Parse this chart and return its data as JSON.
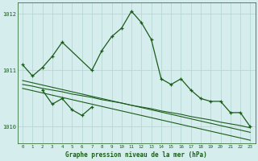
{
  "title": "Graphe pression niveau de la mer (hPa)",
  "background_color": "#d5eeed",
  "grid_color": "#b8d8d5",
  "line_color": "#1a5c1a",
  "ylim": [
    1009.7,
    1012.2
  ],
  "yticks": [
    1010,
    1011,
    1012
  ],
  "xlim": [
    -0.5,
    23.5
  ],
  "x_ticks": [
    0,
    1,
    2,
    3,
    4,
    5,
    6,
    7,
    8,
    9,
    10,
    11,
    12,
    13,
    14,
    15,
    16,
    17,
    18,
    19,
    20,
    21,
    22,
    23
  ],
  "series_upper": {
    "x": [
      0,
      1,
      2,
      3,
      4,
      7,
      8,
      9,
      10,
      11,
      12,
      13,
      14,
      15,
      16,
      17,
      18,
      19,
      20,
      21,
      22,
      23
    ],
    "y": [
      1011.1,
      1010.9,
      1011.05,
      1011.25,
      1011.5,
      1011.0,
      1011.35,
      1011.6,
      1011.75,
      1012.05,
      1011.85,
      1011.55,
      1010.85,
      1010.75,
      1010.85,
      1010.65,
      1010.5,
      1010.45,
      1010.45,
      1010.25,
      1010.25,
      1010.0
    ]
  },
  "series_lower_zigzag": {
    "x": [
      2,
      3,
      4,
      5,
      6,
      7
    ],
    "y": [
      1010.65,
      1010.4,
      1010.5,
      1010.3,
      1010.2,
      1010.35
    ]
  },
  "series_flat1": {
    "x": [
      0,
      1,
      2,
      3,
      4,
      5,
      6,
      7,
      8,
      9,
      10,
      11,
      12,
      13,
      14,
      15,
      16,
      17,
      18,
      19,
      20,
      21,
      22,
      23
    ],
    "y": [
      1010.75,
      1010.72,
      1010.68,
      1010.65,
      1010.62,
      1010.58,
      1010.55,
      1010.52,
      1010.48,
      1010.45,
      1010.42,
      1010.38,
      1010.35,
      1010.32,
      1010.28,
      1010.25,
      1010.22,
      1010.18,
      1010.15,
      1010.12,
      1010.08,
      1010.05,
      1010.02,
      1009.98
    ]
  },
  "series_flat2": {
    "x": [
      0,
      1,
      2,
      3,
      4,
      5,
      6,
      7,
      8,
      9,
      10,
      11,
      12,
      13,
      14,
      15,
      16,
      17,
      18,
      19,
      20,
      21,
      22,
      23
    ],
    "y": [
      1010.82,
      1010.78,
      1010.74,
      1010.7,
      1010.66,
      1010.62,
      1010.58,
      1010.54,
      1010.5,
      1010.46,
      1010.42,
      1010.38,
      1010.34,
      1010.3,
      1010.26,
      1010.22,
      1010.18,
      1010.14,
      1010.1,
      1010.06,
      1010.02,
      1009.98,
      1009.94,
      1009.9
    ]
  },
  "series_flat3": {
    "x": [
      0,
      1,
      2,
      3,
      4,
      5,
      6,
      7,
      8,
      9,
      10,
      11,
      12,
      13,
      14,
      15,
      16,
      17,
      18,
      19,
      20,
      21,
      22,
      23
    ],
    "y": [
      1010.68,
      1010.64,
      1010.6,
      1010.56,
      1010.52,
      1010.48,
      1010.44,
      1010.4,
      1010.36,
      1010.32,
      1010.28,
      1010.24,
      1010.2,
      1010.16,
      1010.12,
      1010.08,
      1010.04,
      1010.0,
      1009.96,
      1009.92,
      1009.88,
      1009.84,
      1009.8,
      1009.76
    ]
  }
}
